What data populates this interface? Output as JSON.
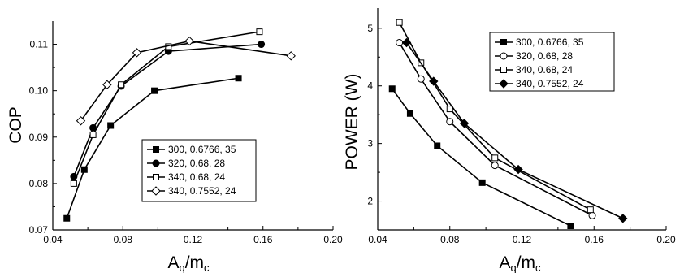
{
  "chart_data": [
    {
      "type": "line",
      "title": "",
      "xlabel": "A",
      "xlabel_sub1": "q",
      "xlabel_mid": "/m",
      "xlabel_sub2": "c",
      "ylabel": "COP",
      "xlim": [
        0.04,
        0.2
      ],
      "ylim": [
        0.07,
        0.115
      ],
      "xticks": [
        0.04,
        0.08,
        0.12,
        0.16,
        0.2
      ],
      "xtick_labels": [
        "0.04",
        "0.08",
        "0.12",
        "0.16",
        "0.20"
      ],
      "yticks": [
        0.07,
        0.08,
        0.09,
        0.1,
        0.11
      ],
      "ytick_labels": [
        "0.07",
        "0.08",
        "0.09",
        "0.10",
        "0.11"
      ],
      "grid": false,
      "legend_position": "bottom-right",
      "series": [
        {
          "name": "300, 0.6766, 35",
          "marker": "square-filled",
          "x": [
            0.048,
            0.058,
            0.073,
            0.098,
            0.146
          ],
          "y": [
            0.0725,
            0.083,
            0.0925,
            0.1,
            0.1027
          ]
        },
        {
          "name": "320, 0.68, 28",
          "marker": "circle-filled",
          "x": [
            0.052,
            0.063,
            0.079,
            0.106,
            0.159
          ],
          "y": [
            0.0815,
            0.092,
            0.101,
            0.1085,
            0.11
          ]
        },
        {
          "name": "340, 0.68, 24",
          "marker": "square-open",
          "x": [
            0.052,
            0.063,
            0.079,
            0.106,
            0.158
          ],
          "y": [
            0.08,
            0.0905,
            0.1013,
            0.1095,
            0.1127
          ]
        },
        {
          "name": "340, 0.7552, 24",
          "marker": "diamond-open",
          "x": [
            0.056,
            0.071,
            0.088,
            0.118,
            0.176
          ],
          "y": [
            0.0935,
            0.1013,
            0.1082,
            0.1107,
            0.1075
          ]
        }
      ]
    },
    {
      "type": "line",
      "title": "",
      "xlabel": "A",
      "xlabel_sub1": "q",
      "xlabel_mid": "/m",
      "xlabel_sub2": "c",
      "ylabel": "POWER (W)",
      "xlim": [
        0.04,
        0.2
      ],
      "ylim": [
        1.5,
        5.35
      ],
      "xticks": [
        0.04,
        0.08,
        0.12,
        0.16,
        0.2
      ],
      "xtick_labels": [
        "0.04",
        "0.08",
        "0.12",
        "0.16",
        "0.20"
      ],
      "yticks": [
        2,
        3,
        4,
        5
      ],
      "ytick_labels": [
        "2",
        "3",
        "4",
        "5"
      ],
      "grid": false,
      "legend_position": "top-right",
      "series": [
        {
          "name": "300, 0.6766, 35",
          "marker": "square-filled",
          "x": [
            0.048,
            0.058,
            0.073,
            0.098,
            0.147
          ],
          "y": [
            3.95,
            3.52,
            2.96,
            2.32,
            1.57
          ]
        },
        {
          "name": "320, 0.68, 28",
          "marker": "circle-open",
          "x": [
            0.052,
            0.064,
            0.08,
            0.105,
            0.159
          ],
          "y": [
            4.75,
            4.12,
            3.38,
            2.62,
            1.75
          ]
        },
        {
          "name": "340, 0.68, 24",
          "marker": "square-open",
          "x": [
            0.052,
            0.064,
            0.08,
            0.105,
            0.158
          ],
          "y": [
            5.1,
            4.4,
            3.6,
            2.75,
            1.85
          ]
        },
        {
          "name": "340, 0.7552, 24",
          "marker": "diamond-filled",
          "x": [
            0.056,
            0.071,
            0.088,
            0.118,
            0.176
          ],
          "y": [
            4.75,
            4.08,
            3.35,
            2.55,
            1.7
          ]
        }
      ]
    }
  ]
}
